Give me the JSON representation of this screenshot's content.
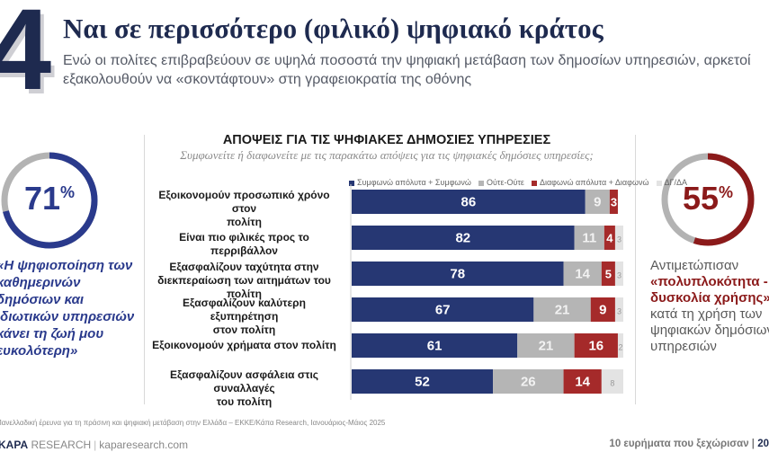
{
  "header": {
    "number": "4",
    "title": "Ναι σε περισσότερο (φιλικό) ψηφιακό κράτος",
    "subtitle": "Ενώ οι πολίτες επιβραβεύουν σε υψηλά ποσοστά την ψηφιακή μετάβαση των δημοσίων υπηρεσιών, αρκετοί εξακολουθούν να «σκοντάφτουν» στη γραφειοκρατία της οθόνης"
  },
  "left_stat": {
    "value": "71",
    "unit": "%",
    "fraction": 0.71,
    "color": "#2a3a8c",
    "track_color": "#b3b3b3",
    "caption": "«Η ψηφιοποίηση των καθημερινών δημόσιων και ιδιωτικών υπηρεσιών κάνει τη ζωή μου ευκολότερη»"
  },
  "right_stat": {
    "value": "55",
    "unit": "%",
    "fraction": 0.55,
    "color": "#8b1a1a",
    "track_color": "#b3b3b3",
    "caption_pre": "Αντιμετώπισαν ",
    "caption_highlight": "«πολυπλοκότητα - δυσκολία χρήσης»",
    "caption_post": " κατά τη χρήση των ψηφιακών δημόσιων υπηρεσιών"
  },
  "chart_data": {
    "type": "bar",
    "orientation": "horizontal-stacked",
    "title": "ΑΠΟΨΕΙΣ ΓΙΑ ΤΙΣ ΨΗΦΙΑΚΕΣ ΔΗΜΟΣΙΕΣ ΥΠΗΡΕΣΙΕΣ",
    "subtitle": "Συμφωνείτε ή διαφωνείτε με τις παρακάτω απόψεις για τις ψηφιακές δημόσιες υπηρεσίες;",
    "xlabel": "",
    "ylabel": "",
    "xlim": [
      0,
      100
    ],
    "grid": false,
    "legend_position": "top-right",
    "categories": [
      "Εξοικονομούν προσωπικό χρόνο στον πολίτη",
      "Είναι πιο φιλικές προς το περριβάλλον",
      "Εξασφαλίζουν ταχύτητα στην διεκπεραίωση των αιτημάτων του πολίτη",
      "Εξασφαλίζουν καλύτερη εξυπηρέτηση στον πολίτη",
      "Εξοικονομούν χρήματα στον πολίτη",
      "Εξασφαλίζουν ασφάλεια στις συναλλαγές του πολίτη"
    ],
    "category_lines": [
      [
        "Εξοικονομούν προσωπικό χρόνο στον",
        "πολίτη"
      ],
      [
        "Είναι πιο φιλικές προς το περριβάλλον"
      ],
      [
        "Εξασφαλίζουν ταχύτητα στην",
        "διεκπεραίωση των αιτημάτων του πολίτη"
      ],
      [
        "Εξασφαλίζουν καλύτερη εξυπηρέτηση",
        "στον πολίτη"
      ],
      [
        "Εξοικονομούν χρήματα στον πολίτη"
      ],
      [
        "Εξασφαλίζουν ασφάλεια στις συναλλαγές",
        "του πολίτη"
      ]
    ],
    "series": [
      {
        "name": "Συμφωνώ απόλυτα + Συμφωνώ",
        "color": "#263773",
        "label_color": "#ffffff",
        "values": [
          86,
          82,
          78,
          67,
          61,
          52
        ]
      },
      {
        "name": "Ούτε-Ούτε",
        "color": "#b5b5b5",
        "label_color": "#f2f2f2",
        "values": [
          9,
          11,
          14,
          21,
          21,
          26
        ]
      },
      {
        "name": "Διαφωνώ απόλυτα + Διαφωνώ",
        "color": "#a52a2a",
        "label_color": "#ffffff",
        "values": [
          3,
          4,
          5,
          9,
          16,
          14
        ]
      },
      {
        "name": "ΔΓ/ΔΑ",
        "color": "#e3e3e3",
        "label_color": "#9a9a9a",
        "values": [
          null,
          3,
          3,
          3,
          2,
          8
        ]
      }
    ]
  },
  "footer": {
    "source": "Πανελλαδική έρευνα για τη πράσινη και ψηφιακή μετάβαση στην Ελλάδα – ΕΚΚΕ/Κάπα Research, Ιανουάριος-Μάιος 2025",
    "brand_strong": "KAPA",
    "brand_rest": "RESEARCH",
    "brand_sep": "|",
    "brand_url": "kaparesearch.com",
    "page_label": "10 ευρήματα που ξεχώρισαν",
    "page_sep": " | ",
    "page_number": "20"
  }
}
